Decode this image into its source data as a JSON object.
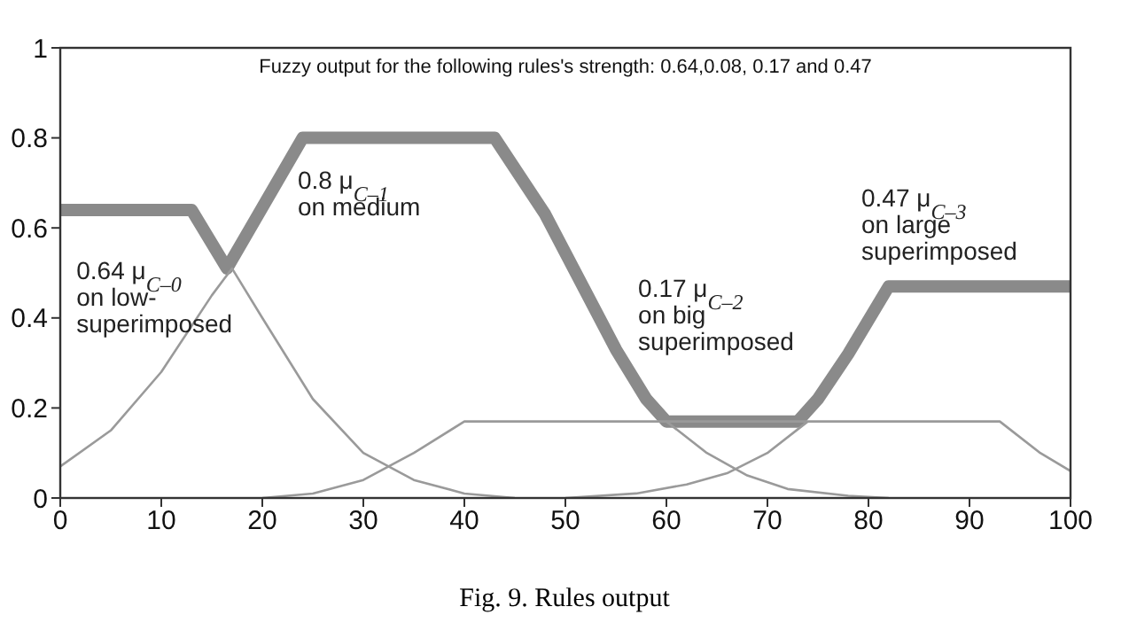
{
  "chart_data": {
    "type": "line",
    "title": "Fuzzy output for the following rules's strength: 0.64,0.08, 0.17 and 0.47",
    "xlim": [
      0,
      100
    ],
    "xticks": [
      0,
      10,
      20,
      30,
      40,
      50,
      60,
      70,
      80,
      90,
      100
    ],
    "ylim": [
      0,
      1
    ],
    "yticks": [
      0,
      0.2,
      0.4,
      0.6,
      0.8,
      1
    ],
    "marker": "none",
    "line_style": "solid",
    "series": [
      {
        "color": "#8a8a8a",
        "x": [
          0,
          13,
          16.5,
          24,
          43,
          48,
          55,
          58,
          60,
          73,
          75,
          78,
          82,
          100
        ],
        "values": [
          0.64,
          0.64,
          0.51,
          0.8,
          0.8,
          0.63,
          0.33,
          0.22,
          0.17,
          0.17,
          0.22,
          0.32,
          0.47,
          0.47
        ]
      },
      {
        "color": "#9a9a9a",
        "x": [
          0,
          5,
          10,
          15,
          17,
          20,
          25,
          30,
          35,
          40,
          45
        ],
        "values": [
          0.07,
          0.15,
          0.28,
          0.45,
          0.51,
          0.4,
          0.22,
          0.1,
          0.04,
          0.01,
          0
        ]
      },
      {
        "color": "#9a9a9a",
        "x": [
          20,
          25,
          30,
          35,
          40,
          93,
          97,
          100
        ],
        "values": [
          0,
          0.01,
          0.04,
          0.1,
          0.17,
          0.17,
          0.1,
          0.06
        ]
      },
      {
        "color": "#9a9a9a",
        "x": [
          60,
          64,
          68,
          72,
          78,
          82
        ],
        "values": [
          0.17,
          0.1,
          0.05,
          0.02,
          0.005,
          0
        ]
      },
      {
        "color": "#9a9a9a",
        "x": [
          50,
          57,
          62,
          66,
          70,
          74
        ],
        "values": [
          0,
          0.01,
          0.03,
          0.055,
          0.1,
          0.17
        ]
      }
    ],
    "annotations": [
      "0.64  μ$_{C–0}$\non low-\nsuperimposed",
      "0.8    μ$_{C–1}$\non medium",
      "0.17  μ$_{C–2}$\non big\nsuperimposed",
      "0.47   μ$_{C–3}$\non large\nsuperimposed",
      "Fig. 9.  Rules output"
    ]
  }
}
